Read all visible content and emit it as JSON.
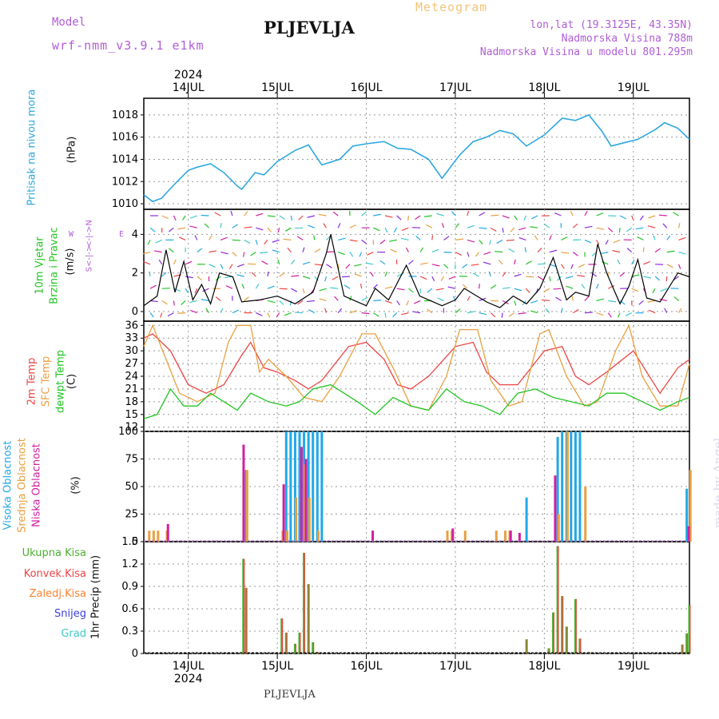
{
  "header": {
    "model_label": "Model",
    "model_name": "wrf-nmm_v3.9.1 e1km",
    "city": "PLJEVLJA",
    "meteogram": "Meteogram",
    "lonlat": "lon,lat (19.3125E, 43.35N)",
    "altitude": "Nadmorska Visina 788m",
    "model_altitude": "Nadmorska Visina u modelu 801.295m"
  },
  "footer": {
    "city": "PLJEVLJA",
    "madeby": "made by Angel"
  },
  "colors": {
    "pressure": "#2ea8e0",
    "wind_label": "#22c422",
    "wind_speed": "#000000",
    "temp2m": "#ee4444",
    "sfc_temp": "#e8a040",
    "dewpt": "#22c422",
    "high_cloud": "#20a8e8",
    "mid_cloud": "#e8a040",
    "low_cloud": "#d020a0",
    "total_precip": "#4cb030",
    "conv_precip": "#ee4444",
    "frozen": "#ff8030",
    "snow": "#4040e0",
    "hail": "#40c8c8",
    "grid": "#999999"
  },
  "labels": {
    "pressure": "Pritisak na nivou mora",
    "pressure_unit": "(hPa)",
    "wind1": "10m Vjetar",
    "wind2": "Brzina i Pravac",
    "wind_unit": "(m/s)",
    "compass_w": "W",
    "compass_e": "E",
    "compass_n": "<-|->N",
    "compass_s": "S<-|->",
    "temp2m": "2m Temp",
    "sfc": "SFC Temp",
    "dewpt": "dewpt Temp",
    "temp_unit": "(C)",
    "high_cloud": "Visoka Oblacnost",
    "mid_cloud": "Srednja Oblacnost",
    "low_cloud": "Niska Oblacnost",
    "cloud_unit": "(%)",
    "precip_total": "Ukupna Kisa",
    "precip_conv": "Konvek.Kisa",
    "precip_frozen": "Zaledj.Kisa",
    "precip_snow": "Snijeg",
    "precip_hail": "Grad",
    "precip_unit": "1hr Precip (mm)"
  },
  "time_axis": {
    "year": "2024",
    "days": [
      "14JUL",
      "15JUL",
      "16JUL",
      "17JUL",
      "18JUL",
      "19JUL"
    ],
    "day_positions": [
      0.5,
      1.5,
      2.5,
      3.5,
      4.5,
      5.5
    ],
    "range_days": [
      0,
      6.13
    ]
  },
  "chart_data": [
    {
      "type": "line",
      "id": "pressure",
      "ylim": [
        1009.5,
        1019.5
      ],
      "yticks": [
        "1010",
        "1012",
        "1014",
        "1016",
        "1018"
      ],
      "series": [
        {
          "x": [
            0,
            0.1,
            0.2,
            0.35,
            0.5,
            0.6,
            0.75,
            0.9,
            1.05,
            1.1,
            1.25,
            1.35,
            1.5,
            1.7,
            1.85,
            2.0,
            2.2,
            2.35,
            2.5,
            2.7,
            2.85,
            3.0,
            3.2,
            3.35,
            3.55,
            3.7,
            3.85,
            4.0,
            4.15,
            4.3,
            4.5,
            4.7,
            4.85,
            5.0,
            5.15,
            5.25,
            5.45,
            5.55,
            5.75,
            5.85,
            6.0,
            6.13
          ],
          "values": [
            1010.8,
            1010.2,
            1010.5,
            1011.8,
            1013.0,
            1013.3,
            1013.6,
            1012.8,
            1011.6,
            1011.3,
            1012.8,
            1012.6,
            1013.8,
            1014.8,
            1015.3,
            1013.5,
            1014.0,
            1015.2,
            1015.4,
            1015.6,
            1015.0,
            1014.9,
            1014.0,
            1012.3,
            1014.4,
            1015.6,
            1016.0,
            1016.6,
            1016.3,
            1015.2,
            1016.2,
            1017.7,
            1017.5,
            1018.0,
            1016.5,
            1015.2,
            1015.6,
            1015.8,
            1016.7,
            1017.3,
            1016.8,
            1015.8
          ]
        }
      ]
    },
    {
      "type": "line",
      "id": "wind",
      "ylim": [
        -0.5,
        5.3
      ],
      "yticks": [
        "0",
        "2",
        "4"
      ],
      "series": [
        {
          "name": "speed",
          "x": [
            0,
            0.15,
            0.25,
            0.35,
            0.45,
            0.55,
            0.65,
            0.75,
            0.85,
            1.0,
            1.1,
            1.3,
            1.5,
            1.7,
            1.9,
            2.05,
            2.1,
            2.25,
            2.5,
            2.6,
            2.75,
            2.95,
            3.1,
            3.35,
            3.5,
            3.6,
            3.85,
            4.0,
            4.15,
            4.3,
            4.45,
            4.6,
            4.75,
            4.85,
            5.0,
            5.1,
            5.2,
            5.35,
            5.45,
            5.55,
            5.65,
            5.8,
            6.0,
            6.13
          ],
          "values": [
            0.3,
            0.8,
            3.2,
            1.0,
            2.6,
            0.6,
            1.4,
            0.4,
            2.0,
            1.8,
            0.5,
            0.6,
            0.8,
            0.4,
            1.0,
            3.0,
            4.0,
            0.8,
            0.3,
            1.2,
            0.6,
            2.4,
            0.8,
            0.3,
            0.6,
            1.2,
            0.5,
            0.2,
            0.8,
            0.4,
            1.2,
            2.8,
            0.6,
            1.0,
            0.8,
            3.5,
            2.0,
            0.4,
            1.3,
            2.7,
            0.7,
            0.5,
            2.0,
            1.8
          ]
        }
      ]
    },
    {
      "type": "line",
      "id": "temperature",
      "ylim": [
        11,
        37
      ],
      "yticks": [
        "12",
        "15",
        "18",
        "21",
        "24",
        "27",
        "30",
        "33",
        "36"
      ],
      "series": [
        {
          "name": "2m Temp",
          "x": [
            0,
            0.1,
            0.3,
            0.5,
            0.7,
            0.9,
            1.1,
            1.2,
            1.35,
            1.5,
            1.7,
            1.85,
            2.0,
            2.3,
            2.5,
            2.7,
            2.85,
            3.0,
            3.2,
            3.5,
            3.7,
            3.85,
            4.0,
            4.2,
            4.5,
            4.7,
            4.85,
            5.0,
            5.2,
            5.5,
            5.65,
            5.8,
            6.0,
            6.13
          ],
          "values": [
            33,
            34,
            30,
            22,
            20,
            22,
            29,
            32,
            26,
            25,
            23,
            21,
            23,
            31,
            32,
            28,
            22,
            21,
            24,
            31,
            32,
            25,
            22,
            22,
            30,
            31,
            24,
            22,
            25,
            30,
            25,
            20,
            26,
            28
          ]
        },
        {
          "name": "SFC Temp",
          "x": [
            0,
            0.1,
            0.25,
            0.4,
            0.6,
            0.8,
            0.95,
            1.05,
            1.2,
            1.3,
            1.4,
            1.6,
            1.8,
            2.0,
            2.2,
            2.45,
            2.6,
            2.8,
            3.0,
            3.2,
            3.4,
            3.55,
            3.75,
            3.9,
            4.1,
            4.25,
            4.45,
            4.55,
            4.75,
            4.95,
            5.1,
            5.3,
            5.45,
            5.6,
            5.8,
            6.0,
            6.13
          ],
          "values": [
            31,
            36,
            28,
            20,
            18,
            20,
            32,
            36,
            36,
            25,
            28,
            24,
            19,
            18,
            24,
            34,
            34,
            26,
            17,
            16,
            24,
            35,
            35,
            23,
            17,
            18,
            34,
            35,
            24,
            17,
            18,
            30,
            36,
            24,
            17,
            17,
            27
          ]
        },
        {
          "name": "dewpt Temp",
          "x": [
            0,
            0.15,
            0.3,
            0.45,
            0.6,
            0.75,
            0.9,
            1.05,
            1.2,
            1.4,
            1.6,
            1.75,
            1.9,
            2.1,
            2.25,
            2.4,
            2.6,
            2.8,
            3.0,
            3.2,
            3.4,
            3.6,
            3.8,
            4.0,
            4.2,
            4.4,
            4.6,
            4.8,
            5.0,
            5.2,
            5.4,
            5.6,
            5.8,
            6.0,
            6.13
          ],
          "values": [
            14,
            15,
            21,
            17,
            17,
            20,
            18,
            16,
            20,
            18,
            17,
            18,
            21,
            22,
            20,
            18,
            15,
            19,
            17,
            16,
            21,
            18,
            17,
            15,
            20,
            21,
            19,
            18,
            17,
            20,
            20,
            18,
            16,
            18,
            19
          ]
        }
      ]
    },
    {
      "type": "bar",
      "id": "cloud",
      "ylim": [
        0,
        100
      ],
      "yticks": [
        "0",
        "25",
        "50",
        "75",
        "100"
      ],
      "series": [
        {
          "name": "Visoka Oblacnost",
          "x": [
            1.15,
            1.6,
            1.65,
            1.7,
            1.75,
            1.8,
            1.85,
            1.9,
            1.95,
            2.0,
            4.3,
            4.65,
            4.7,
            4.75,
            4.8,
            4.85,
            4.9,
            6.1
          ],
          "values": [
            65,
            100,
            100,
            100,
            100,
            100,
            100,
            100,
            100,
            100,
            40,
            95,
            100,
            100,
            100,
            100,
            100,
            48
          ]
        },
        {
          "name": "Srednja Oblacnost",
          "x": [
            0.05,
            0.1,
            0.15,
            0.25,
            1.15,
            1.55,
            1.6,
            1.7,
            1.8,
            1.85,
            1.95,
            3.4,
            3.45,
            3.6,
            3.95,
            4.05,
            4.1,
            4.65,
            4.75,
            4.95,
            6.13
          ],
          "values": [
            10,
            10,
            10,
            10,
            65,
            10,
            10,
            40,
            70,
            40,
            10,
            10,
            10,
            10,
            10,
            10,
            10,
            25,
            100,
            50,
            65
          ]
        },
        {
          "name": "Niska Oblacnost",
          "x": [
            0.25,
            1.1,
            1.55,
            1.75,
            1.8,
            2.55,
            3.45,
            4.1,
            4.2,
            4.6,
            6.1
          ],
          "values": [
            16,
            88,
            52,
            86,
            75,
            10,
            12,
            10,
            8,
            60,
            14
          ]
        }
      ]
    },
    {
      "type": "bar",
      "id": "precip",
      "ylim": [
        0,
        1.5
      ],
      "yticks": [
        "0",
        "0.3",
        "0.6",
        "0.9",
        "1.2",
        "1.5"
      ],
      "series": [
        {
          "name": "Ukupna Kisa",
          "x": [
            1.1,
            1.12,
            1.15,
            1.55,
            1.6,
            1.7,
            1.75,
            1.8,
            1.85,
            1.9,
            1.95,
            4.3,
            4.55,
            4.6,
            4.65,
            4.7,
            4.75,
            4.85,
            4.9,
            5.0,
            6.05,
            6.1,
            6.13
          ],
          "values": [
            0.02,
            1.27,
            0.88,
            0.47,
            0.28,
            0.13,
            0.28,
            1.35,
            0.93,
            0.15,
            0.02,
            0.19,
            0.07,
            0.55,
            1.44,
            0.77,
            0.36,
            0.73,
            0.2,
            0.02,
            0.12,
            0.27,
            0.65
          ]
        }
      ]
    }
  ]
}
